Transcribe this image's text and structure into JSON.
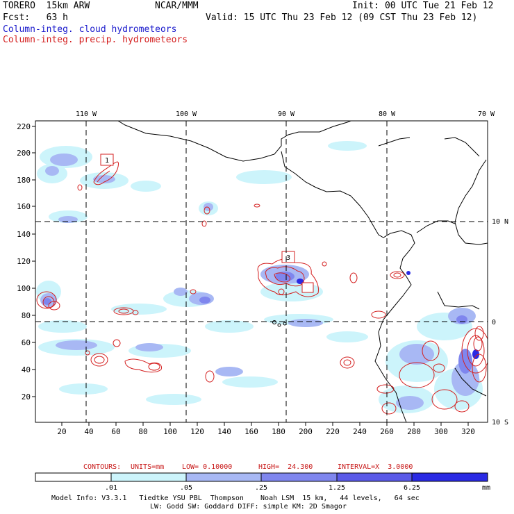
{
  "header": {
    "model": "TORERO  15km ARW",
    "org": "NCAR/MMM",
    "init": "Init: 00 UTC Tue 21 Feb 12",
    "fcst": "Fcst:   63 h",
    "valid": "Valid: 15 UTC Thu 23 Feb 12 (09 CST Thu 23 Feb 12)",
    "field_cloud": "Column-integ. cloud hydrometeors",
    "field_precip": "Column-integ. precip. hydrometeors"
  },
  "colors": {
    "cloud": "#1a1acc",
    "precip": "#d42020",
    "shade1": "#ccf4fb",
    "shade2": "#a8b8f4",
    "shade3": "#7f86ee",
    "shade4": "#5a5ae8",
    "shade5": "#2a2ae4"
  },
  "map": {
    "lon_labels": [
      "110 W",
      "100 W",
      "90 W",
      "80 W",
      "70 W"
    ],
    "lat_labels": [
      "10 N",
      "0",
      "10 S"
    ],
    "y_ticks": [
      "220",
      "200",
      "180",
      "160",
      "140",
      "120",
      "100",
      "80",
      "60",
      "40",
      "20"
    ],
    "x_ticks": [
      "20",
      "40",
      "60",
      "80",
      "100",
      "120",
      "140",
      "160",
      "180",
      "200",
      "220",
      "240",
      "260",
      "280",
      "300",
      "320"
    ],
    "markers": [
      "1",
      "3"
    ]
  },
  "contours": {
    "label": "CONTOURS:",
    "units": "UNITS=mm",
    "low": "LOW= 0.10000",
    "high": "HIGH=  24.300",
    "interval": "INTERVAL=X  3.0000"
  },
  "colorbar": {
    "labels": [
      ".01",
      ".05",
      ".25",
      "1.25",
      "6.25"
    ],
    "unit": "mm"
  },
  "footer": {
    "line1": "Model Info: V3.3.1   Tiedtke YSU PBL  Thompson    Noah LSM  15 km,   44 levels,   64 sec",
    "line2": "LW: Godd SW: Goddard DIFF: simple KM: 2D Smagor"
  }
}
